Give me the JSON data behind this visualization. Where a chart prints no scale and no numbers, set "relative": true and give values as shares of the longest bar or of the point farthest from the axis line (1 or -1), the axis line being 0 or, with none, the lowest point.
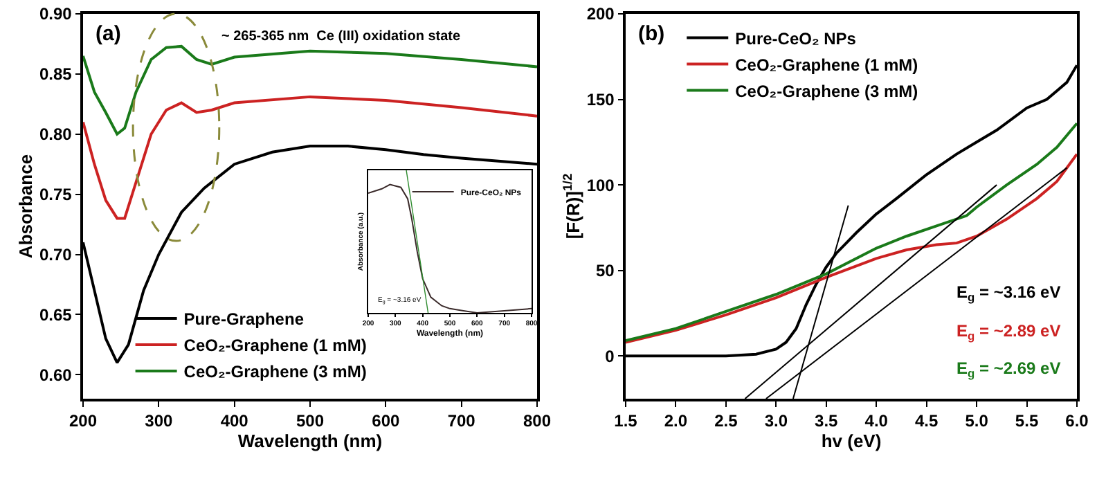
{
  "chart_data": [
    {
      "type": "line",
      "xlabel": "Wavelength (nm)",
      "ylabel": "Absorbance",
      "xlim": [
        200,
        800
      ],
      "ylim": [
        0.58,
        0.9
      ],
      "xticks": [
        200,
        300,
        400,
        500,
        600,
        700,
        800
      ],
      "yticks": [
        {
          "value": 0.6,
          "label": "0.60"
        },
        {
          "value": 0.65,
          "label": "0.65"
        },
        {
          "value": 0.7,
          "label": "0.70"
        },
        {
          "value": 0.75,
          "label": "0.75"
        },
        {
          "value": 0.8,
          "label": "0.80"
        },
        {
          "value": 0.85,
          "label": "0.85"
        },
        {
          "value": 0.9,
          "label": "0.90"
        }
      ],
      "legend": "bottom left",
      "marker": "none",
      "line_style": "solid",
      "annotations": [
        "(a)",
        "~ 265-365 nm  Ce (III) oxidation state"
      ],
      "series": [
        {
          "name": "Pure-Graphene",
          "color": "#000000",
          "x": [
            200,
            215,
            230,
            245,
            260,
            280,
            300,
            330,
            360,
            400,
            450,
            500,
            550,
            600,
            650,
            700,
            800
          ],
          "values": [
            0.71,
            0.67,
            0.63,
            0.61,
            0.625,
            0.67,
            0.7,
            0.735,
            0.755,
            0.775,
            0.785,
            0.79,
            0.79,
            0.787,
            0.783,
            0.78,
            0.775
          ]
        },
        {
          "name": "CeO₂-Graphene (1 mM)",
          "color": "#cc2222",
          "x": [
            200,
            215,
            230,
            245,
            255,
            270,
            290,
            310,
            330,
            350,
            370,
            400,
            500,
            600,
            700,
            800
          ],
          "values": [
            0.81,
            0.775,
            0.745,
            0.73,
            0.73,
            0.76,
            0.8,
            0.82,
            0.826,
            0.818,
            0.82,
            0.826,
            0.831,
            0.828,
            0.822,
            0.815
          ]
        },
        {
          "name": "CeO₂-Graphene (3 mM)",
          "color": "#1a7a1a",
          "x": [
            200,
            215,
            230,
            245,
            255,
            270,
            290,
            310,
            330,
            350,
            370,
            400,
            500,
            600,
            700,
            800
          ],
          "values": [
            0.865,
            0.835,
            0.818,
            0.8,
            0.805,
            0.835,
            0.862,
            0.872,
            0.873,
            0.862,
            0.858,
            0.864,
            0.869,
            0.867,
            0.862,
            0.856
          ]
        }
      ]
    },
    {
      "type": "line",
      "xlabel": "hv (eV)",
      "ylabel": "[F(R)]$^{1/2}$",
      "xlim": [
        1.5,
        6.0
      ],
      "ylim": [
        -25,
        200
      ],
      "xticks": [
        1.5,
        {
          "value": 2,
          "label": "2.0"
        },
        2.5,
        {
          "value": 3,
          "label": "3.0"
        },
        3.5,
        {
          "value": 4,
          "label": "4.0"
        },
        4.5,
        {
          "value": 5,
          "label": "5.0"
        },
        5.5,
        {
          "value": 6,
          "label": "6.0"
        }
      ],
      "yticks": [
        0,
        50,
        100,
        150,
        200
      ],
      "legend": "top left",
      "marker": "none",
      "line_style": "solid",
      "annotations": [
        "(b)",
        "E$_{g}$ = ~3.16 eV",
        "E$_{g}$ = ~2.89 eV",
        "E$_{g}$ = ~2.69 eV"
      ],
      "series": [
        {
          "name": "Pure-CeO₂ NPs",
          "color": "#000000",
          "x": [
            1.5,
            2.5,
            2.8,
            3.0,
            3.1,
            3.2,
            3.3,
            3.4,
            3.5,
            3.6,
            3.7,
            3.8,
            4.0,
            4.2,
            4.5,
            4.8,
            5.0,
            5.2,
            5.5,
            5.7,
            5.9,
            6.0
          ],
          "values": [
            0,
            0,
            1,
            4,
            8,
            16,
            30,
            42,
            52,
            60,
            66,
            72,
            83,
            92,
            106,
            118,
            125,
            132,
            145,
            150,
            160,
            170
          ]
        },
        {
          "name": "CeO₂-Graphene (1 mM)",
          "color": "#cc2222",
          "x": [
            1.5,
            2.0,
            2.5,
            3.0,
            3.5,
            4.0,
            4.3,
            4.6,
            4.8,
            5.0,
            5.3,
            5.6,
            5.8,
            6.0
          ],
          "values": [
            8,
            15,
            24,
            34,
            46,
            57,
            62,
            65,
            66,
            70,
            80,
            92,
            102,
            118
          ]
        },
        {
          "name": "CeO₂-Graphene (3 mM)",
          "color": "#1a7a1a",
          "x": [
            1.5,
            2.0,
            2.5,
            3.0,
            3.5,
            4.0,
            4.3,
            4.6,
            4.9,
            5.0,
            5.3,
            5.6,
            5.8,
            6.0
          ],
          "values": [
            9,
            16,
            26,
            36,
            48,
            63,
            70,
            76,
            82,
            87,
            100,
            112,
            122,
            136
          ]
        },
        {
          "type": "line",
          "color": "#000000",
          "x": [
            3.17,
            3.72
          ],
          "values": [
            -25,
            88
          ]
        },
        {
          "type": "line",
          "color": "#000000",
          "x": [
            2.69,
            5.2
          ],
          "values": [
            -25,
            100
          ]
        },
        {
          "type": "line",
          "color": "#000000",
          "x": [
            2.9,
            5.9
          ],
          "values": [
            -25,
            110
          ]
        }
      ]
    },
    {
      "type": "line",
      "relative": true,
      "xlabel": "Wavelength (nm)",
      "ylabel": "Absorbance (a.u.)",
      "xlim": [
        200,
        800
      ],
      "xticks": [
        200,
        300,
        400,
        500,
        600,
        700,
        800
      ],
      "legend": "top right",
      "marker": "none",
      "line_style": "solid",
      "annotations": [
        "E$_{g}$ = ~3.16 eV"
      ],
      "series": [
        {
          "name": "Pure-CeO₂ NPs",
          "color": "#3a2a2a",
          "x": [
            200,
            250,
            280,
            320,
            345,
            360,
            380,
            400,
            430,
            470,
            500,
            550,
            600,
            700,
            800
          ],
          "values": [
            0.84,
            0.87,
            0.9,
            0.88,
            0.8,
            0.66,
            0.43,
            0.24,
            0.11,
            0.05,
            0.03,
            0.015,
            0,
            0.015,
            0.03
          ]
        },
        {
          "type": "line",
          "color": "#2e8b2e",
          "x": [
            340,
            420
          ],
          "values": [
            1.0,
            0.0
          ]
        }
      ]
    }
  ]
}
